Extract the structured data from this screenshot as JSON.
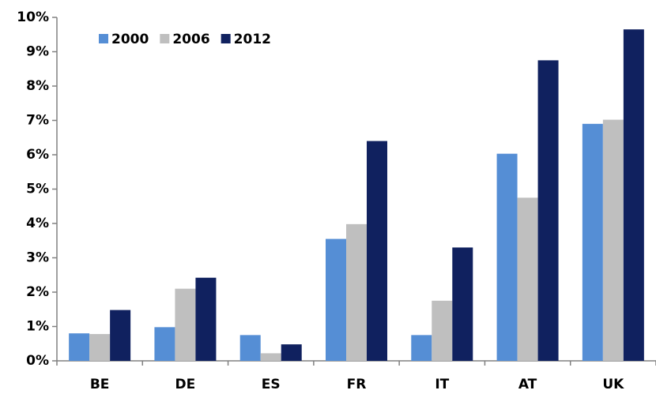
{
  "chart_data": {
    "type": "bar",
    "categories": [
      "BE",
      "DE",
      "ES",
      "FR",
      "IT",
      "AT",
      "UK"
    ],
    "series": [
      {
        "name": "2000",
        "color": "#558ed5",
        "values": [
          0.8,
          0.98,
          0.75,
          3.55,
          0.75,
          6.03,
          6.9
        ]
      },
      {
        "name": "2006",
        "color": "#bfbfbf",
        "values": [
          0.78,
          2.1,
          0.22,
          3.98,
          1.75,
          4.75,
          7.02
        ]
      },
      {
        "name": "2012",
        "color": "#10215f",
        "values": [
          1.48,
          2.42,
          0.48,
          6.4,
          3.3,
          8.75,
          9.65
        ]
      }
    ],
    "ylim": [
      0,
      10
    ],
    "yticks": [
      {
        "value": 0,
        "label": "0%"
      },
      {
        "value": 1,
        "label": "1%"
      },
      {
        "value": 2,
        "label": "2%"
      },
      {
        "value": 3,
        "label": "3%"
      },
      {
        "value": 4,
        "label": "4%"
      },
      {
        "value": 5,
        "label": "5%"
      },
      {
        "value": 6,
        "label": "6%"
      },
      {
        "value": 7,
        "label": "7%"
      },
      {
        "value": 8,
        "label": "8%"
      },
      {
        "value": 9,
        "label": "9%"
      },
      {
        "value": 10,
        "label": "10%"
      }
    ],
    "grid": false,
    "legend": "top-left"
  }
}
